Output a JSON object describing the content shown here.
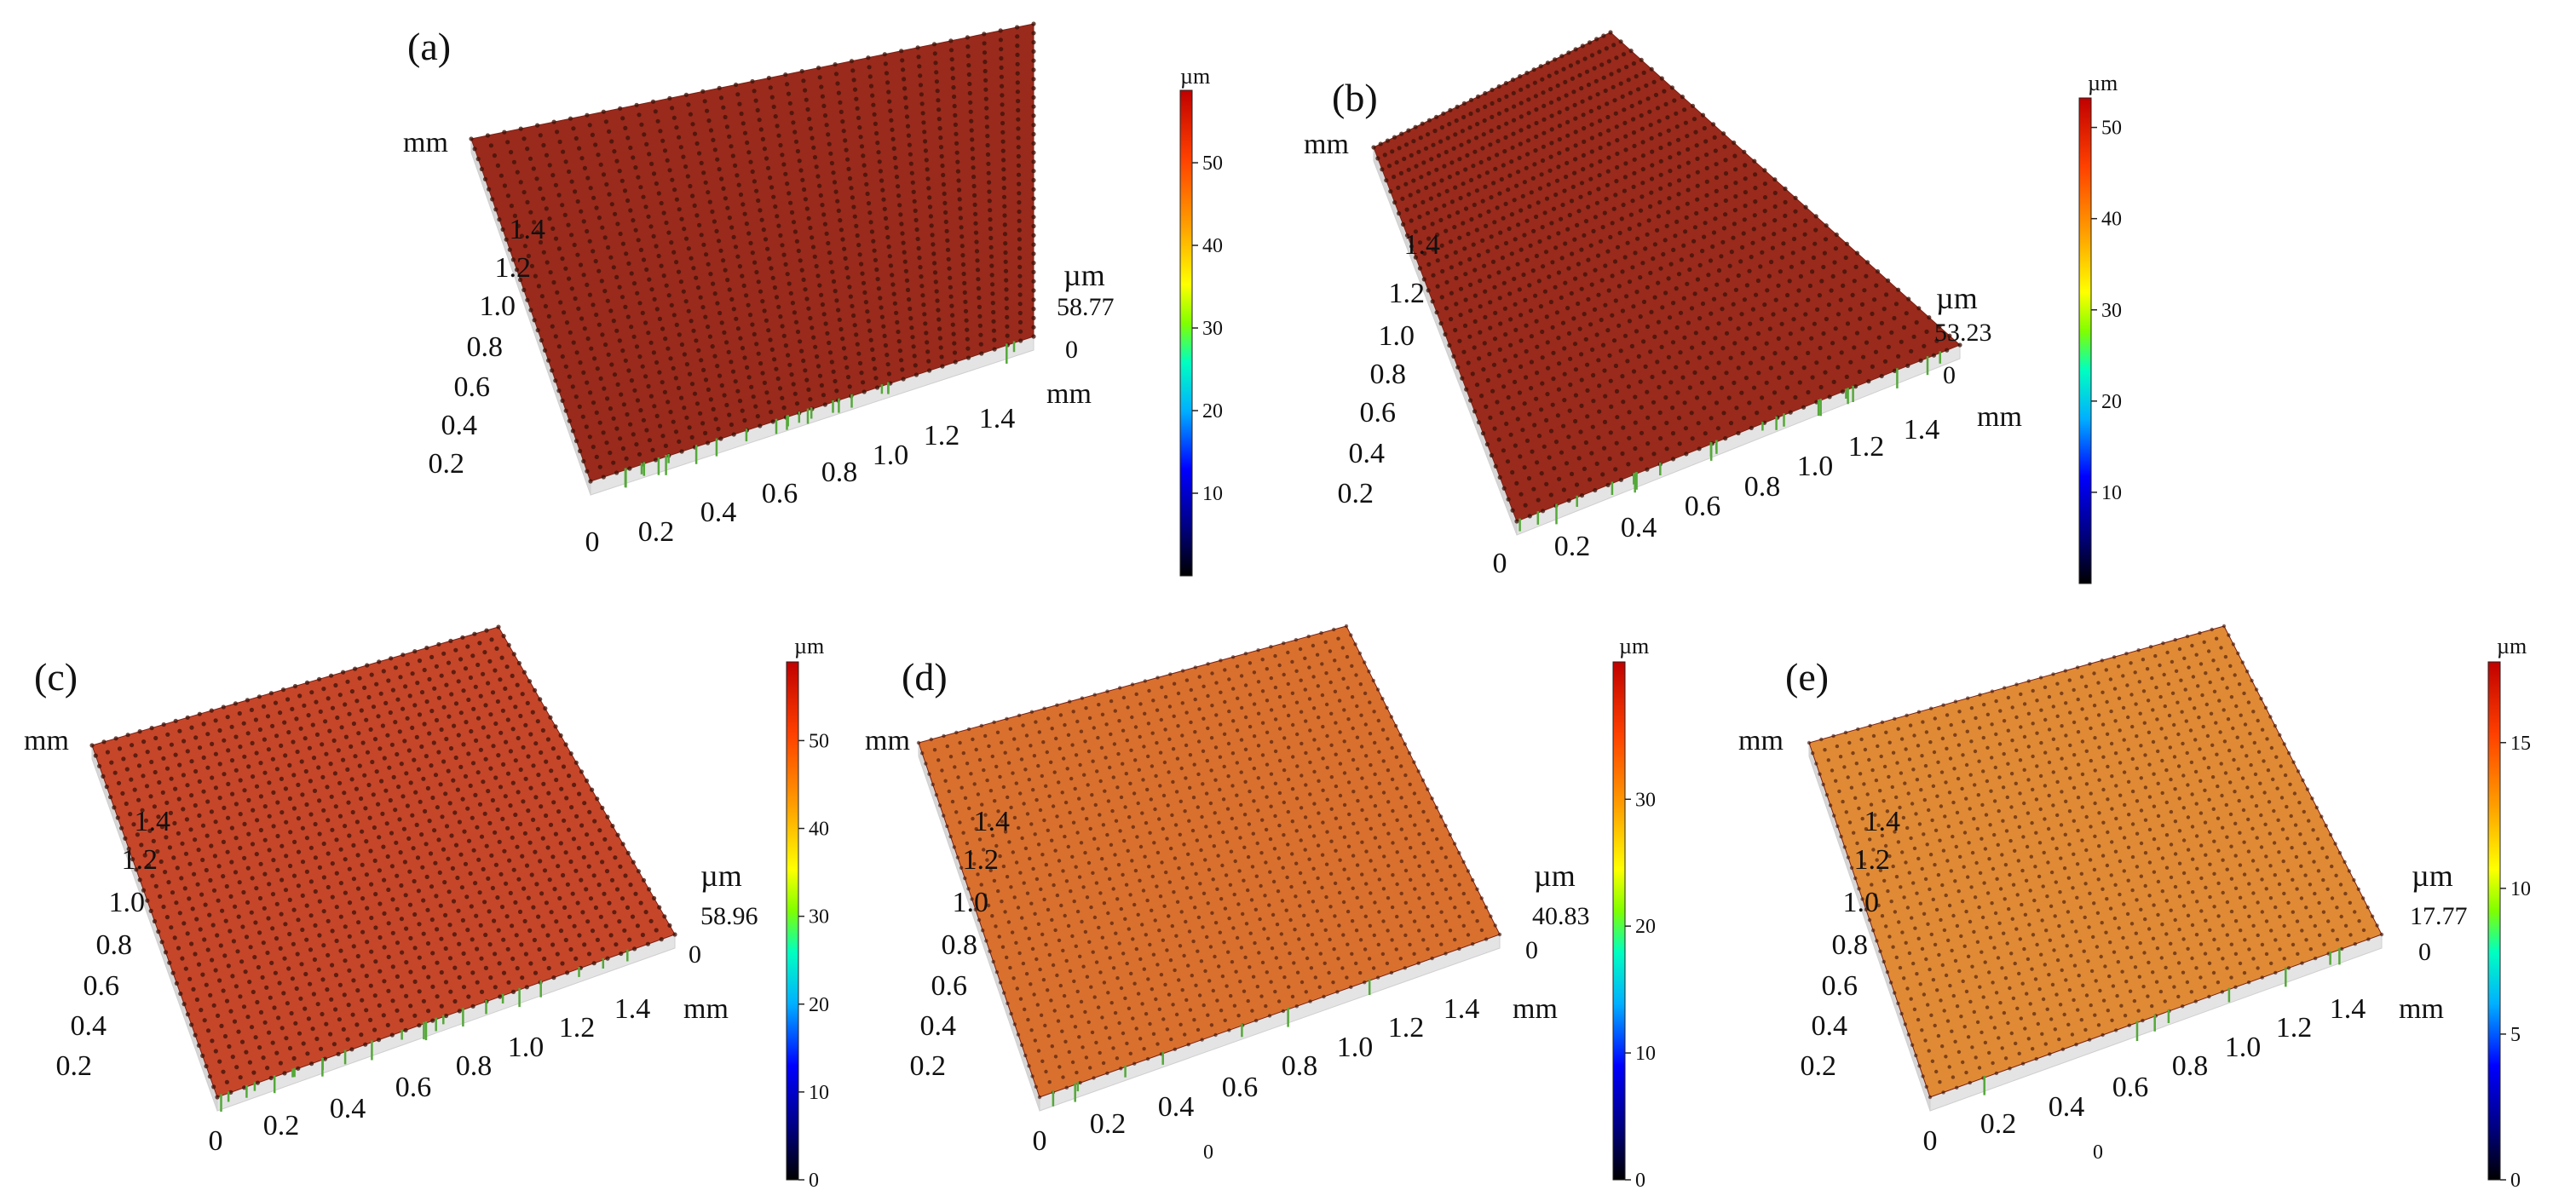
{
  "colors": {
    "surface_dark": "#9a2a1c",
    "surface_mid": "#c6462a",
    "surface_orange": "#d9702e",
    "surface_light": "#e08a35",
    "pillar_dots": "#3b1208",
    "green_spikes": "#55a83a",
    "base_gray": "#e4e4e4",
    "colorbar": [
      "#000000",
      "#000080",
      "#0000ff",
      "#00b0ff",
      "#00ffc0",
      "#80ff00",
      "#ffff00",
      "#ffa000",
      "#ff4000",
      "#c00000"
    ]
  },
  "panels": [
    {
      "label": "(a)",
      "y_axis_unit": "mm",
      "y_ticks": [
        "0.2",
        "0.4",
        "0.6",
        "0.8",
        "1.0",
        "1.2",
        "1.4"
      ],
      "x_ticks": [
        "0",
        "0.2",
        "0.4",
        "0.6",
        "0.8",
        "1.0",
        "1.2",
        "1.4"
      ],
      "x_axis_unit": "mm",
      "z_unit": "µm",
      "z_max": "58.77",
      "z_min": "0",
      "colorbar_unit": "µm",
      "colorbar_ticks": [
        "10",
        "20",
        "30",
        "40",
        "50"
      ],
      "colorbar_max": 58.77,
      "surface_fill": "surface_dark"
    },
    {
      "label": "(b)",
      "y_axis_unit": "mm",
      "y_ticks": [
        "0.2",
        "0.4",
        "0.6",
        "0.8",
        "1.0",
        "1.2",
        "1.4"
      ],
      "x_ticks": [
        "0",
        "0.2",
        "0.4",
        "0.6",
        "0.8",
        "1.0",
        "1.2",
        "1.4"
      ],
      "x_axis_unit": "mm",
      "z_unit": "µm",
      "z_max": "53.23",
      "z_min": "0",
      "colorbar_unit": "µm",
      "colorbar_ticks": [
        "10",
        "20",
        "30",
        "40",
        "50"
      ],
      "colorbar_max": 53.23,
      "surface_fill": "surface_dark"
    },
    {
      "label": "(c)",
      "y_axis_unit": "mm",
      "y_ticks": [
        "0.2",
        "0.4",
        "0.6",
        "0.8",
        "1.0",
        "1.2",
        "1.4"
      ],
      "x_ticks": [
        "0",
        "0.2",
        "0.4",
        "0.6",
        "0.8",
        "1.0",
        "1.2",
        "1.4"
      ],
      "x_axis_unit": "mm",
      "z_unit": "µm",
      "z_max": "58.96",
      "z_min": "0",
      "colorbar_unit": "µm",
      "colorbar_ticks": [
        "0",
        "10",
        "20",
        "30",
        "40",
        "50"
      ],
      "colorbar_max": 58.96,
      "surface_fill": "surface_mid"
    },
    {
      "label": "(d)",
      "y_axis_unit": "mm",
      "y_ticks": [
        "0.2",
        "0.4",
        "0.6",
        "0.8",
        "1.0",
        "1.2",
        "1.4"
      ],
      "x_ticks": [
        "0",
        "0.2",
        "0.4",
        "0.6",
        "0.8",
        "1.0",
        "1.2",
        "1.4"
      ],
      "x_axis_unit": "mm",
      "z_unit": "µm",
      "z_max": "40.83",
      "z_min": "0",
      "colorbar_unit": "µm",
      "colorbar_ticks": [
        "0",
        "10",
        "20",
        "30"
      ],
      "colorbar_max": 40.83,
      "surface_fill": "surface_orange",
      "stray_label": "0"
    },
    {
      "label": "(e)",
      "y_axis_unit": "mm",
      "y_ticks": [
        "0.2",
        "0.4",
        "0.6",
        "0.8",
        "1.0",
        "1.2",
        "1.4"
      ],
      "x_ticks": [
        "0",
        "0.2",
        "0.4",
        "0.6",
        "0.8",
        "1.0",
        "1.2",
        "1.4"
      ],
      "x_axis_unit": "mm",
      "z_unit": "µm",
      "z_max": "17.77",
      "z_min": "0",
      "colorbar_unit": "µm",
      "colorbar_ticks": [
        "0",
        "5",
        "10",
        "15"
      ],
      "colorbar_max": 17.77,
      "surface_fill": "surface_light",
      "stray_label": "0"
    }
  ]
}
